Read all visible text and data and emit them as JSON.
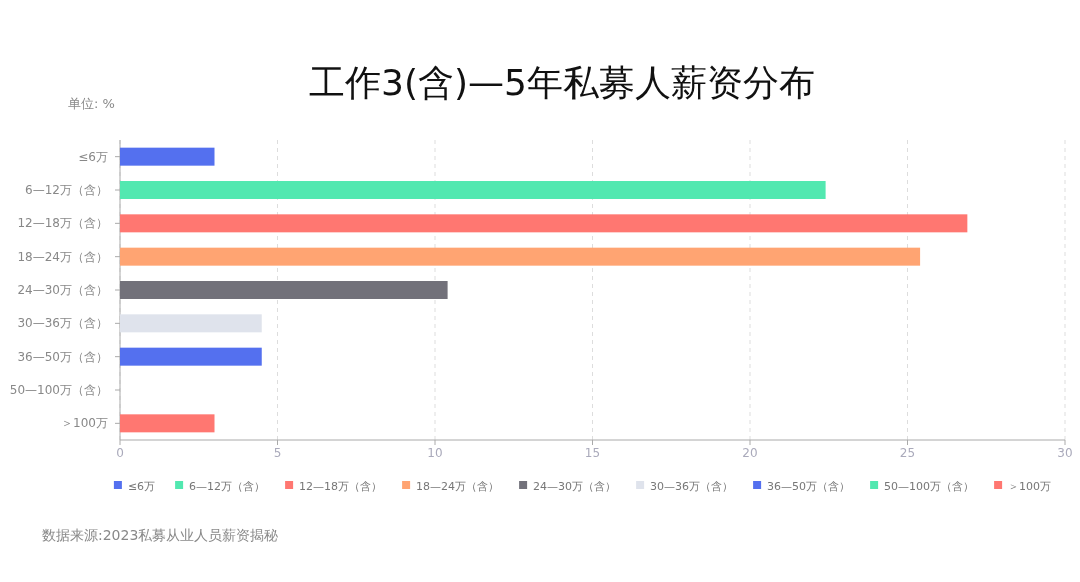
{
  "chart_data": {
    "type": "bar",
    "orientation": "horizontal",
    "title": "工作3(含)—5年私募人薪资分布",
    "ylabel": "单位: %",
    "categories": [
      "≤6万",
      "6—12万（含）",
      "12—18万（含）",
      "18—24万（含）",
      "24—30万（含）",
      "30—36万（含）",
      "36—50万（含）",
      "50—100万（含）",
      "＞100万"
    ],
    "series": [
      {
        "name": "≤6万",
        "color": "#5470ef",
        "values": [
          3.0,
          null,
          null,
          null,
          null,
          null,
          null,
          null,
          null
        ]
      },
      {
        "name": "6—12万（含）",
        "color": "#52e8b0",
        "values": [
          null,
          22.4,
          null,
          null,
          null,
          null,
          null,
          null,
          null
        ]
      },
      {
        "name": "12—18万（含）",
        "color": "#ff7771",
        "values": [
          null,
          null,
          26.9,
          null,
          null,
          null,
          null,
          null,
          null
        ]
      },
      {
        "name": "18—24万（含）",
        "color": "#ffa472",
        "values": [
          null,
          null,
          null,
          25.4,
          null,
          null,
          null,
          null,
          null
        ]
      },
      {
        "name": "24—30万（含）",
        "color": "#72717a",
        "values": [
          null,
          null,
          null,
          null,
          10.4,
          null,
          null,
          null,
          null
        ]
      },
      {
        "name": "30—36万（含）",
        "color": "#dfe3ec",
        "values": [
          null,
          null,
          null,
          null,
          null,
          4.5,
          null,
          null,
          null
        ]
      },
      {
        "name": "36—50万（含）",
        "color": "#5470ef",
        "values": [
          null,
          null,
          null,
          null,
          null,
          null,
          4.5,
          null,
          null
        ]
      },
      {
        "name": "50—100万（含）",
        "color": "#52e8b0",
        "values": [
          null,
          null,
          null,
          null,
          null,
          null,
          null,
          0,
          null
        ]
      },
      {
        "name": "＞100万",
        "color": "#ff7771",
        "values": [
          null,
          null,
          null,
          null,
          null,
          null,
          null,
          null,
          3.0
        ]
      }
    ],
    "xlim": [
      0,
      30
    ],
    "xticks": [
      0,
      5,
      10,
      15,
      20,
      25,
      30
    ],
    "grid": "x",
    "legend": "bottom",
    "annotations": [
      "数据来源:2023私募从业人员薪资揭秘"
    ]
  }
}
